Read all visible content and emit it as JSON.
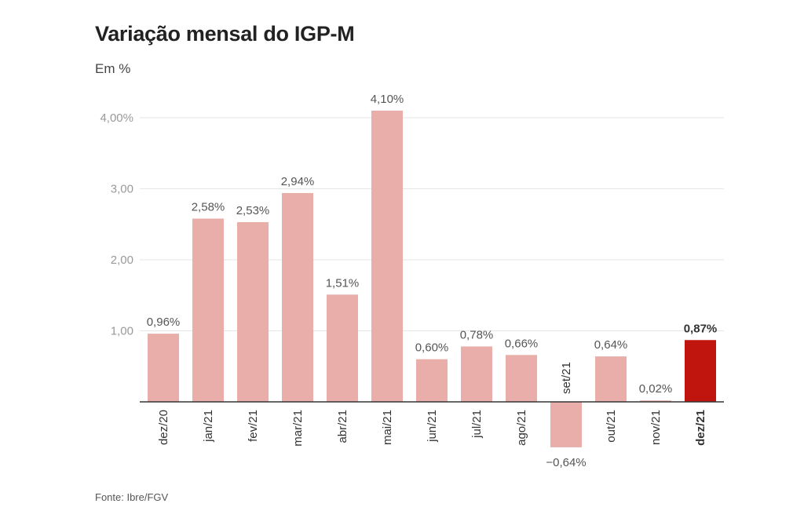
{
  "title": "Variação mensal do IGP-M",
  "subtitle": "Em %",
  "source": "Fonte: Ibre/FGV",
  "colors": {
    "bar": "#e9aeaa",
    "highlight": "#c0150f",
    "grid": "#e6e6e6",
    "axis": "#333333"
  },
  "chart_data": {
    "type": "bar",
    "title": "Variação mensal do IGP-M",
    "ylabel": "Em %",
    "categories": [
      "dez/20",
      "jan/21",
      "fev/21",
      "mar/21",
      "abr/21",
      "mai/21",
      "jun/21",
      "jul/21",
      "ago/21",
      "set/21",
      "out/21",
      "nov/21",
      "dez/21"
    ],
    "values": [
      0.96,
      2.58,
      2.53,
      2.94,
      1.51,
      4.1,
      0.6,
      0.78,
      0.66,
      -0.64,
      0.64,
      0.02,
      0.87
    ],
    "value_labels": [
      "0,96%",
      "2,58%",
      "2,53%",
      "2,94%",
      "1,51%",
      "4,10%",
      "0,60%",
      "0,78%",
      "0,66%",
      "−0,64%",
      "0,64%",
      "0,02%",
      "0,87%"
    ],
    "highlight_index": 12,
    "yticks": [
      1,
      2,
      3,
      4
    ],
    "ytick_labels": [
      "1,00",
      "2,00",
      "3,00",
      "4,00%"
    ],
    "ylim": [
      -0.64,
      4.1
    ],
    "grid": true,
    "legend": "none"
  }
}
